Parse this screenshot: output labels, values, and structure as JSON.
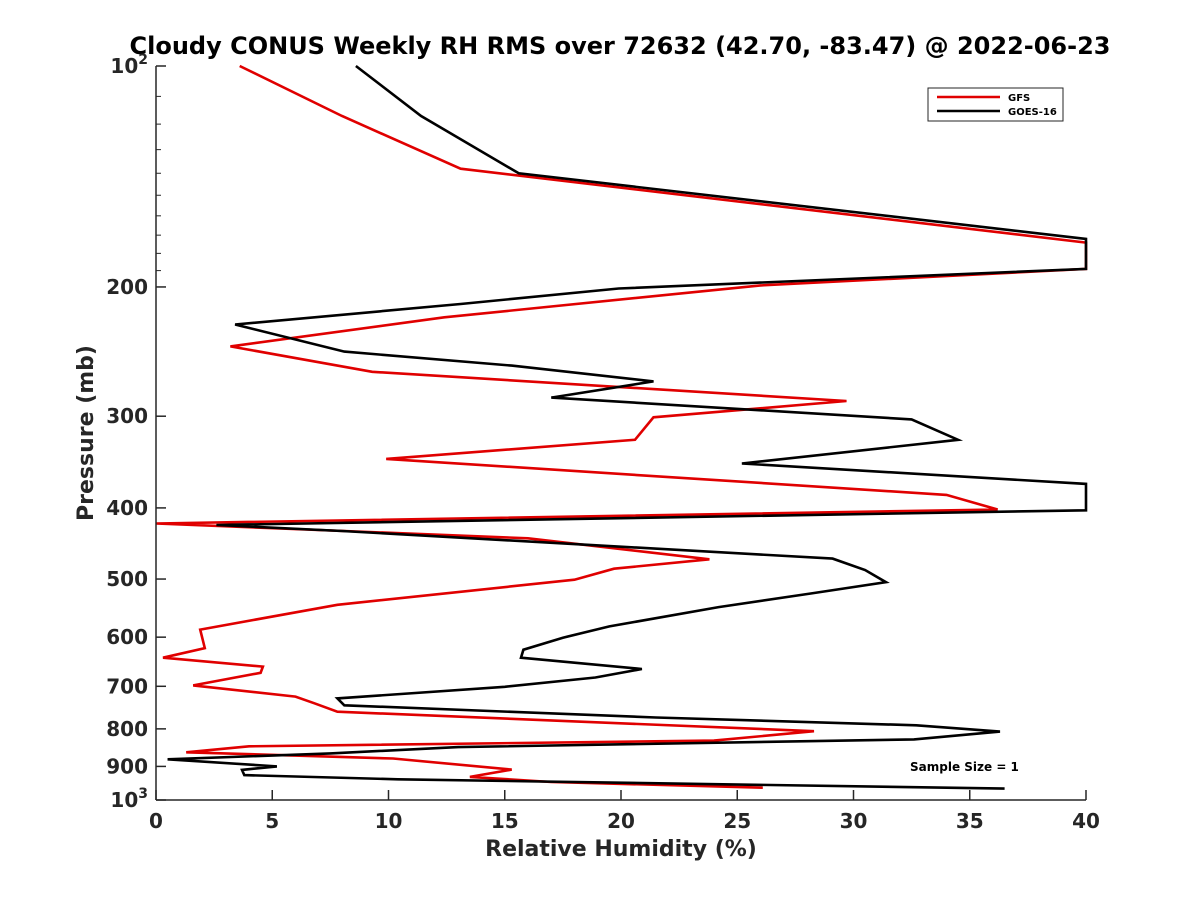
{
  "chart_data": {
    "type": "line",
    "title": "Cloudy CONUS Weekly RH RMS over 72632 (42.70, -83.47) @ 2022-06-23",
    "xlabel": "Relative Humidity (%)",
    "ylabel": "Pressure (mb)",
    "xlim": [
      0,
      40
    ],
    "ylim": [
      100,
      1000
    ],
    "y_scale": "log",
    "y_reversed": true,
    "x_ticks": [
      "0",
      "5",
      "10",
      "15",
      "20",
      "25",
      "30",
      "35",
      "40"
    ],
    "y_ticks": [
      {
        "value": 100,
        "base": "10",
        "exp": "2"
      },
      {
        "value": 200,
        "label": "200"
      },
      {
        "value": 300,
        "label": "300"
      },
      {
        "value": 400,
        "label": "400"
      },
      {
        "value": 500,
        "label": "500"
      },
      {
        "value": 600,
        "label": "600"
      },
      {
        "value": 700,
        "label": "700"
      },
      {
        "value": 800,
        "label": "800"
      },
      {
        "value": 900,
        "label": "900"
      },
      {
        "value": 1000,
        "base": "10",
        "exp": "3"
      }
    ],
    "grid": false,
    "legend_position": "top-right",
    "annotation": "Sample Size = 1",
    "series": [
      {
        "name": "GFS",
        "color": "#e00000",
        "points": [
          [
            3.6,
            100
          ],
          [
            8.0,
            117
          ],
          [
            13.1,
            138
          ],
          [
            40.0,
            174
          ],
          [
            40.0,
            189
          ],
          [
            26.0,
            199
          ],
          [
            12.4,
            220
          ],
          [
            3.2,
            241
          ],
          [
            9.3,
            261
          ],
          [
            29.7,
            286
          ],
          [
            21.4,
            301
          ],
          [
            20.6,
            323
          ],
          [
            9.9,
            343
          ],
          [
            34.0,
            384
          ],
          [
            36.2,
            402
          ],
          [
            0.0,
            420
          ],
          [
            16.0,
            440
          ],
          [
            23.8,
            470
          ],
          [
            19.7,
            484
          ],
          [
            18.0,
            501
          ],
          [
            7.8,
            542
          ],
          [
            1.9,
            586
          ],
          [
            2.1,
            621
          ],
          [
            0.3,
            640
          ],
          [
            4.6,
            658
          ],
          [
            4.5,
            671
          ],
          [
            1.6,
            698
          ],
          [
            6.0,
            723
          ],
          [
            6.8,
            738
          ],
          [
            7.8,
            758
          ],
          [
            28.3,
            806
          ],
          [
            24.0,
            830
          ],
          [
            4.0,
            845
          ],
          [
            1.3,
            861
          ],
          [
            10.2,
            878
          ],
          [
            15.3,
            909
          ],
          [
            13.5,
            930
          ],
          [
            17.0,
            945
          ],
          [
            26.1,
            962
          ]
        ]
      },
      {
        "name": "GOES-16",
        "color": "#000000",
        "points": [
          [
            8.6,
            100
          ],
          [
            11.4,
            117
          ],
          [
            15.6,
            140
          ],
          [
            40.0,
            172
          ],
          [
            40.0,
            189
          ],
          [
            19.9,
            201
          ],
          [
            13.1,
            211
          ],
          [
            3.4,
            225
          ],
          [
            8.1,
            245
          ],
          [
            15.3,
            256
          ],
          [
            21.4,
            269
          ],
          [
            17.0,
            283
          ],
          [
            32.5,
            303
          ],
          [
            34.5,
            323
          ],
          [
            25.2,
            348
          ],
          [
            40.0,
            371
          ],
          [
            40.0,
            403
          ],
          [
            2.6,
            422
          ],
          [
            8.0,
            430
          ],
          [
            29.1,
            469
          ],
          [
            30.5,
            486
          ],
          [
            31.4,
            505
          ],
          [
            28.2,
            523
          ],
          [
            24.2,
            546
          ],
          [
            19.5,
            580
          ],
          [
            17.5,
            601
          ],
          [
            15.8,
            624
          ],
          [
            15.7,
            640
          ],
          [
            20.9,
            663
          ],
          [
            18.9,
            681
          ],
          [
            15.0,
            701
          ],
          [
            7.8,
            727
          ],
          [
            8.1,
            743
          ],
          [
            21.5,
            772
          ],
          [
            32.7,
            791
          ],
          [
            36.3,
            807
          ],
          [
            32.6,
            827
          ],
          [
            13.0,
            847
          ],
          [
            7.5,
            864
          ],
          [
            0.5,
            880
          ],
          [
            5.2,
            900
          ],
          [
            3.7,
            910
          ],
          [
            3.8,
            925
          ],
          [
            10.4,
            937
          ],
          [
            36.5,
            965
          ]
        ]
      }
    ]
  }
}
